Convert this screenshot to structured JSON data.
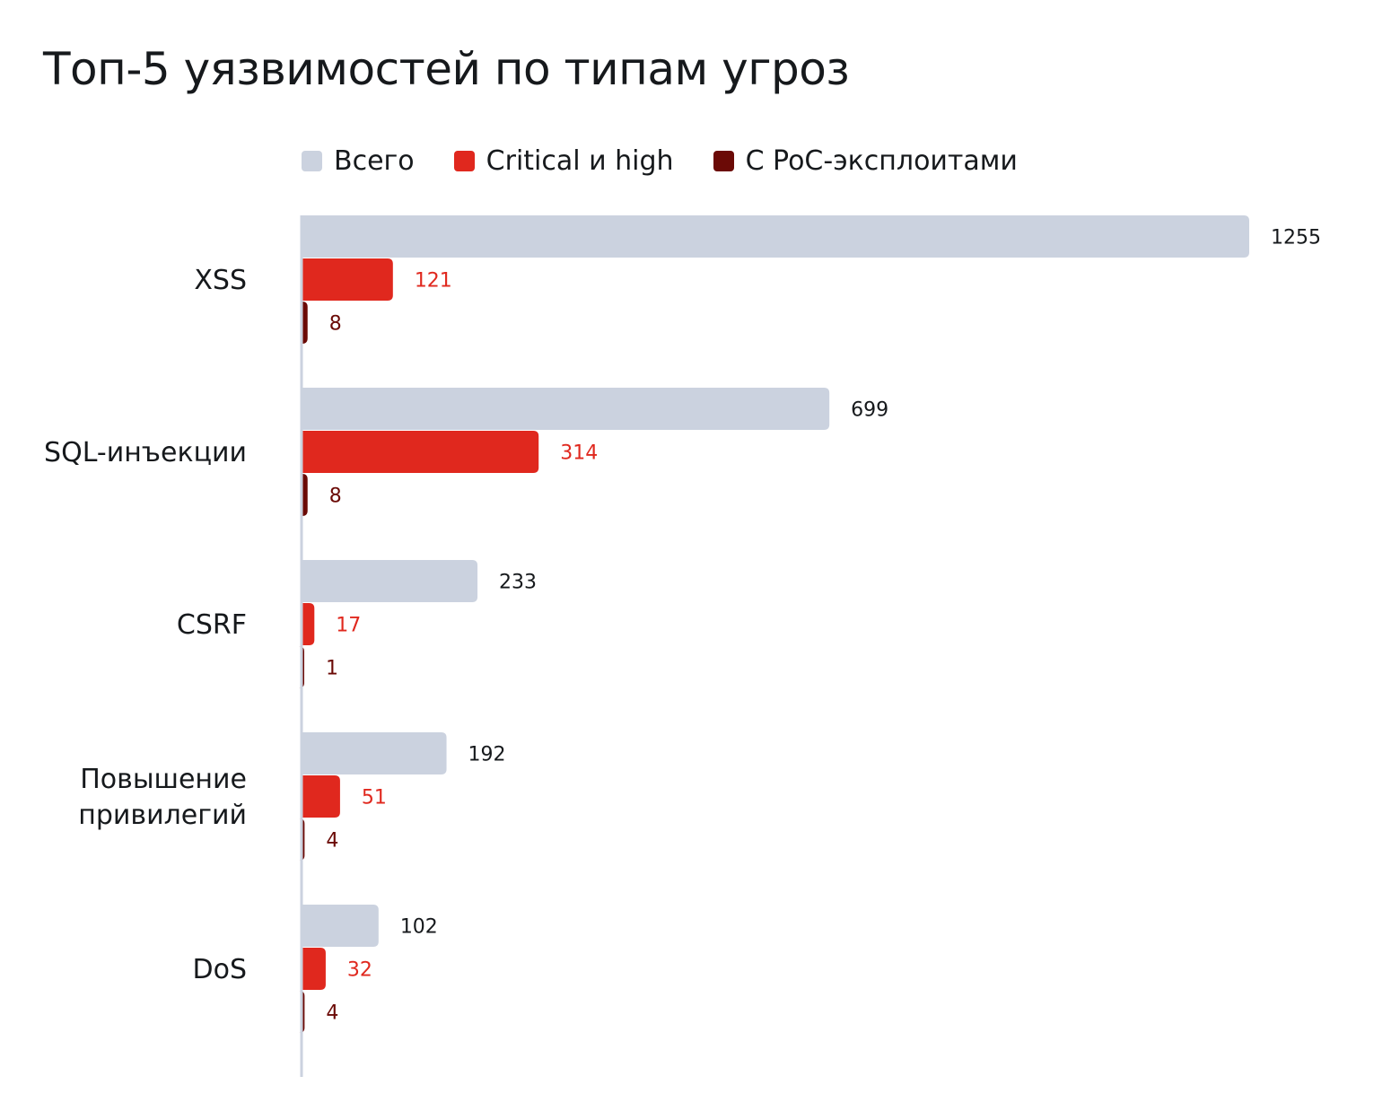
{
  "chart_data": {
    "type": "bar",
    "orientation": "horizontal",
    "title": "Топ-5 уязвимостей по типам угроз",
    "categories": [
      "XSS",
      "SQL-инъекции",
      "CSRF",
      "Повышение привилегий",
      "DoS"
    ],
    "series": [
      {
        "name": "Всего",
        "color": "#cbd2df",
        "label_color": "#16191c",
        "values": [
          1255,
          699,
          233,
          192,
          102
        ]
      },
      {
        "name": "Critical и high",
        "color": "#e0281e",
        "label_color": "#e0281e",
        "values": [
          121,
          314,
          17,
          51,
          32
        ]
      },
      {
        "name": "С PoC-эксплоитами",
        "color": "#6b0a06",
        "label_color": "#6b0a06",
        "values": [
          8,
          8,
          1,
          4,
          4
        ]
      }
    ],
    "xlim": [
      0,
      1255
    ],
    "grid": false,
    "legend": "top"
  }
}
